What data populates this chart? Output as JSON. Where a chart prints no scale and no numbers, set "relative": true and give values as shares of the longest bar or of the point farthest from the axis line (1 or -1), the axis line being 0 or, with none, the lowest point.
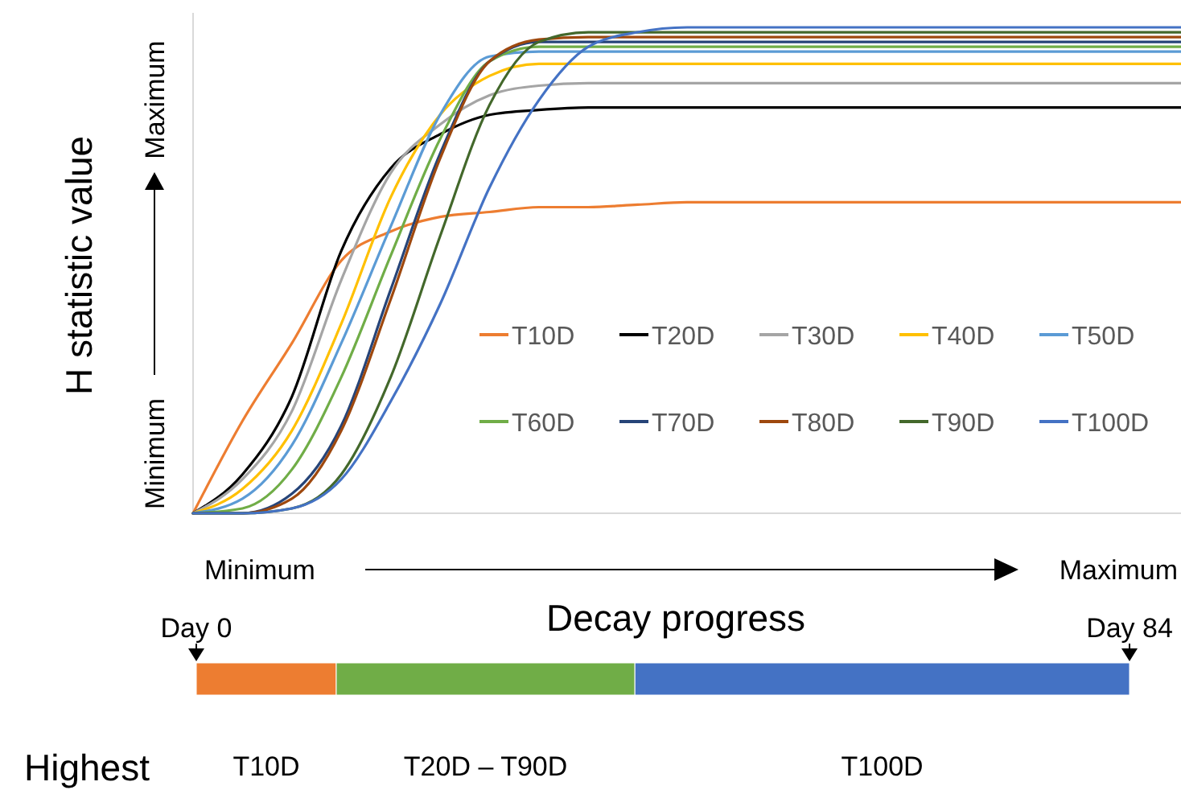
{
  "chart_data": [
    {
      "type": "line",
      "relative": true,
      "ylabel": "H statistic value",
      "xlabel": "Decay progress",
      "legend": "right",
      "annotations": [
        "Minimum",
        "Maximum",
        "Minimum",
        "Maximum"
      ],
      "categories": [
        null,
        null,
        null,
        null,
        null,
        null,
        null,
        null,
        null,
        null,
        null,
        null,
        null,
        null,
        null,
        null,
        null,
        null,
        null,
        null,
        null
      ],
      "series": [
        {
          "name": "T10D",
          "color": "#ed7d31",
          "values": [
            0,
            0.19,
            0.35,
            0.52,
            0.58,
            0.61,
            0.62,
            0.63,
            0.63,
            0.635,
            0.64,
            0.64,
            0.64,
            0.64,
            0.64,
            0.64,
            0.64,
            0.64,
            0.64,
            0.64,
            0.64
          ]
        },
        {
          "name": "T20D",
          "color": "#000000",
          "values": [
            0,
            0.08,
            0.24,
            0.54,
            0.71,
            0.78,
            0.82,
            0.83,
            0.835,
            0.835,
            0.835,
            0.835,
            0.835,
            0.835,
            0.835,
            0.835,
            0.835,
            0.835,
            0.835,
            0.835,
            0.835
          ]
        },
        {
          "name": "T30D",
          "color": "#a5a5a5",
          "values": [
            0,
            0.07,
            0.21,
            0.48,
            0.7,
            0.8,
            0.86,
            0.88,
            0.885,
            0.885,
            0.885,
            0.885,
            0.885,
            0.885,
            0.885,
            0.885,
            0.885,
            0.885,
            0.885,
            0.885,
            0.885
          ]
        },
        {
          "name": "T40D",
          "color": "#ffc000",
          "values": [
            0,
            0.05,
            0.17,
            0.39,
            0.65,
            0.82,
            0.9,
            0.925,
            0.925,
            0.925,
            0.925,
            0.925,
            0.925,
            0.925,
            0.925,
            0.925,
            0.925,
            0.925,
            0.925,
            0.925,
            0.925
          ]
        },
        {
          "name": "T50D",
          "color": "#5b9bd5",
          "values": [
            0,
            0.03,
            0.14,
            0.35,
            0.59,
            0.82,
            0.94,
            0.95,
            0.95,
            0.95,
            0.95,
            0.95,
            0.95,
            0.95,
            0.95,
            0.95,
            0.95,
            0.95,
            0.95,
            0.95,
            0.95
          ]
        },
        {
          "name": "T60D",
          "color": "#70ad47",
          "values": [
            0,
            0.01,
            0.09,
            0.28,
            0.53,
            0.77,
            0.93,
            0.96,
            0.96,
            0.96,
            0.96,
            0.96,
            0.96,
            0.96,
            0.96,
            0.96,
            0.96,
            0.96,
            0.96,
            0.96,
            0.96
          ]
        },
        {
          "name": "T70D",
          "color": "#264478",
          "values": [
            0,
            0,
            0.04,
            0.18,
            0.46,
            0.74,
            0.93,
            0.97,
            0.97,
            0.97,
            0.97,
            0.97,
            0.97,
            0.97,
            0.97,
            0.97,
            0.97,
            0.97,
            0.97,
            0.97,
            0.97
          ]
        },
        {
          "name": "T80D",
          "color": "#9e480e",
          "values": [
            0,
            0,
            0.03,
            0.17,
            0.44,
            0.73,
            0.93,
            0.975,
            0.98,
            0.98,
            0.98,
            0.98,
            0.98,
            0.98,
            0.98,
            0.98,
            0.98,
            0.98,
            0.98,
            0.98,
            0.98
          ]
        },
        {
          "name": "T90D",
          "color": "#43682b",
          "values": [
            0,
            0,
            0.01,
            0.08,
            0.28,
            0.57,
            0.84,
            0.97,
            0.99,
            0.99,
            0.99,
            0.99,
            0.99,
            0.99,
            0.99,
            0.99,
            0.99,
            0.99,
            0.99,
            0.99,
            0.99
          ]
        },
        {
          "name": "T100D",
          "color": "#4472c4",
          "values": [
            0,
            0,
            0.01,
            0.07,
            0.23,
            0.43,
            0.67,
            0.85,
            0.96,
            0.99,
            1,
            1,
            1,
            1,
            1,
            1,
            1,
            1,
            1,
            1,
            1
          ]
        }
      ]
    },
    {
      "type": "bar",
      "orientation": "horizontal",
      "stacked": true,
      "relative": true,
      "categories": [
        "Highest"
      ],
      "annotations": [
        "Day 0",
        "Day 84"
      ],
      "series": [
        {
          "name": "T10D",
          "color": "#ed7d31",
          "values": [
            0.15
          ]
        },
        {
          "name": "T20D – T90D",
          "color": "#70ad47",
          "values": [
            0.32
          ]
        },
        {
          "name": "T100D",
          "color": "#4472c4",
          "values": [
            0.53
          ]
        }
      ]
    }
  ]
}
